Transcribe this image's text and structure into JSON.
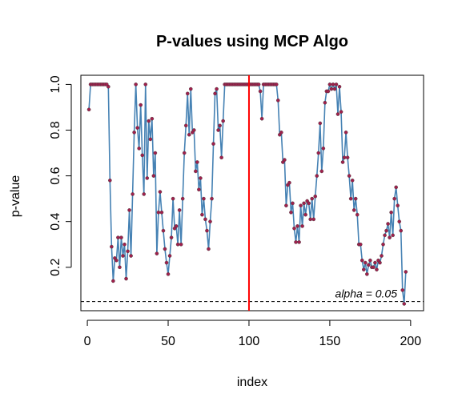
{
  "chart_data": {
    "type": "line",
    "title": "P-values using MCP Algo",
    "xlabel": "index",
    "ylabel": "p-value",
    "xlim": [
      -4,
      208
    ],
    "ylim": [
      0.01,
      1.04
    ],
    "x_ticks": [
      "0",
      "50",
      "100",
      "150",
      "200"
    ],
    "y_ticks": [
      "0.2",
      "0.4",
      "0.6",
      "0.8",
      "1.0"
    ],
    "grid": false,
    "legend": "none",
    "line_color": "#4682B4",
    "marker_color": "#A0204C",
    "threshold": {
      "value": 0.05,
      "label": "alpha = 0.05",
      "color": "#000000",
      "style": "dashed"
    },
    "vline": {
      "x": 100,
      "color": "#FF0000"
    },
    "series": [
      {
        "values": [
          0.89,
          1.0,
          1.0,
          1.0,
          1.0,
          1.0,
          1.0,
          1.0,
          1.0,
          1.0,
          1.0,
          1.0,
          0.99,
          0.58,
          0.29,
          0.14,
          0.24,
          0.23,
          0.33,
          0.2,
          0.33,
          0.25,
          0.3,
          0.15,
          0.27,
          0.45,
          0.25,
          0.52,
          0.79,
          1.0,
          0.81,
          0.72,
          0.91,
          0.69,
          0.52,
          1.0,
          0.59,
          0.84,
          0.76,
          0.85,
          0.6,
          0.7,
          0.26,
          0.44,
          0.53,
          0.44,
          0.36,
          0.28,
          0.22,
          0.17,
          0.25,
          0.33,
          0.5,
          0.37,
          0.38,
          0.3,
          0.45,
          0.3,
          0.5,
          0.7,
          0.82,
          0.96,
          0.78,
          0.98,
          0.79,
          0.8,
          0.62,
          0.66,
          0.54,
          0.59,
          0.43,
          0.5,
          0.41,
          0.36,
          0.28,
          0.4,
          0.5,
          0.74,
          0.96,
          0.98,
          0.8,
          0.82,
          0.68,
          0.84,
          1.0,
          1.0,
          1.0,
          1.0,
          1.0,
          1.0,
          1.0,
          1.0,
          1.0,
          1.0,
          1.0,
          1.0,
          1.0,
          1.0,
          1.0,
          1.0,
          1.0,
          1.0,
          1.0,
          1.0,
          1.0,
          1.0,
          0.97,
          0.85,
          1.0,
          1.0,
          1.0,
          1.0,
          1.0,
          1.0,
          1.0,
          1.0,
          1.0,
          0.93,
          0.78,
          0.79,
          0.66,
          0.67,
          0.47,
          0.56,
          0.57,
          0.44,
          0.48,
          0.37,
          0.31,
          0.38,
          0.31,
          0.47,
          0.38,
          0.48,
          0.43,
          0.49,
          0.48,
          0.41,
          0.5,
          0.41,
          0.51,
          0.6,
          0.7,
          0.83,
          0.62,
          0.72,
          0.92,
          0.97,
          0.97,
          1.0,
          0.98,
          1.0,
          0.98,
          1.0,
          0.87,
          0.99,
          0.88,
          0.66,
          0.68,
          0.79,
          0.68,
          0.6,
          0.5,
          0.58,
          0.45,
          0.5,
          0.43,
          0.3,
          0.3,
          0.23,
          0.19,
          0.22,
          0.17,
          0.21,
          0.23,
          0.2,
          0.2,
          0.22,
          0.19,
          0.23,
          0.22,
          0.25,
          0.3,
          0.34,
          0.36,
          0.39,
          0.33,
          0.44,
          0.34,
          0.5,
          0.55,
          0.47,
          0.4,
          0.36,
          0.1,
          0.04,
          0.18
        ]
      }
    ]
  }
}
